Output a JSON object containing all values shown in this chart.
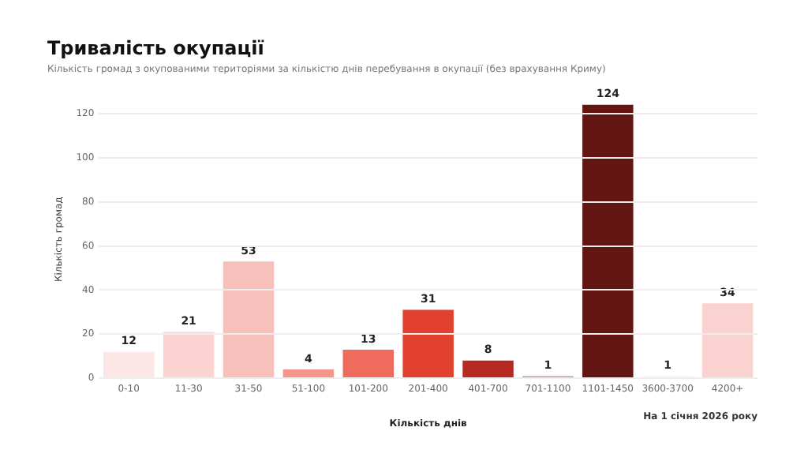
{
  "chart_data": {
    "type": "bar",
    "title": "Тривалість окупації",
    "subtitle": "Кількість громад з окупованими територіями за кількістю днів перебування в окупації (без врахування Криму)",
    "xlabel": "Кількість днів",
    "ylabel": "Кількість громад",
    "annotations": [
      "На 1 січня 2026 року"
    ],
    "categories": [
      "0-10",
      "11-30",
      "31-50",
      "51-100",
      "101-200",
      "201-400",
      "401-700",
      "701-1100",
      "1101-1450",
      "3600-3700",
      "4200+"
    ],
    "values": [
      12,
      21,
      53,
      4,
      13,
      31,
      8,
      1,
      124,
      1,
      34
    ],
    "colors": [
      "#fde7e6",
      "#fbd4d1",
      "#f7c0ba",
      "#f4968c",
      "#ef6b5e",
      "#e3412f",
      "#b72a22",
      "#c59a97",
      "#631611",
      "#fdf0ef",
      "#fad2cf"
    ],
    "ylim": [
      0,
      126
    ],
    "yticks": [
      0,
      20,
      40,
      60,
      80,
      100,
      120
    ],
    "grid": "y",
    "legend": false,
    "data_labels": true
  }
}
